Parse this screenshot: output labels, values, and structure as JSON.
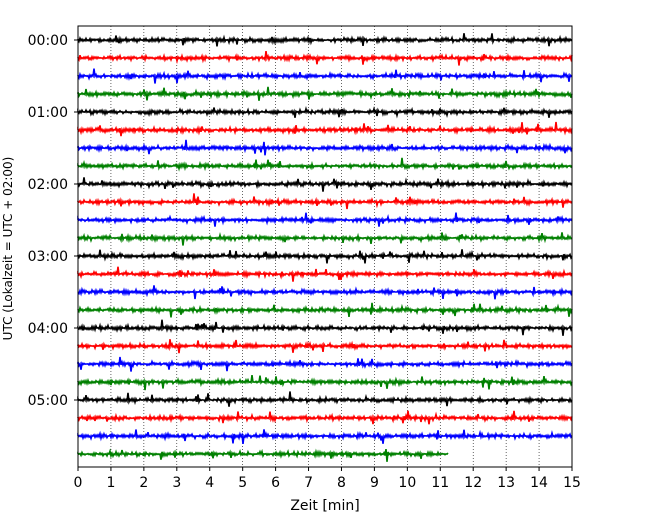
{
  "chart_data": {
    "type": "line",
    "title": "",
    "xlabel": "Zeit  [min]",
    "ylabel": "UTC (Lokalzeit = UTC + 02:00)",
    "xlim": [
      0,
      15
    ],
    "x_ticks": [
      "0",
      "1",
      "2",
      "3",
      "4",
      "5",
      "6",
      "7",
      "8",
      "9",
      "10",
      "11",
      "12",
      "13",
      "14",
      "15"
    ],
    "y_ticks": [
      "00:00",
      "01:00",
      "02:00",
      "03:00",
      "04:00",
      "05:00"
    ],
    "grid": "vertical dotted",
    "trace_interval_minutes": 15,
    "trace_colors": [
      "#000000",
      "#ff0000",
      "#0000ff",
      "#008000"
    ],
    "series": [
      {
        "start": "00:00",
        "color": "#000000",
        "end_min": 15
      },
      {
        "start": "00:15",
        "color": "#ff0000",
        "end_min": 15
      },
      {
        "start": "00:30",
        "color": "#0000ff",
        "end_min": 15
      },
      {
        "start": "00:45",
        "color": "#008000",
        "end_min": 15
      },
      {
        "start": "01:00",
        "color": "#000000",
        "end_min": 15
      },
      {
        "start": "01:15",
        "color": "#ff0000",
        "end_min": 15
      },
      {
        "start": "01:30",
        "color": "#0000ff",
        "end_min": 15
      },
      {
        "start": "01:45",
        "color": "#008000",
        "end_min": 15
      },
      {
        "start": "02:00",
        "color": "#000000",
        "end_min": 15
      },
      {
        "start": "02:15",
        "color": "#ff0000",
        "end_min": 15
      },
      {
        "start": "02:30",
        "color": "#0000ff",
        "end_min": 15
      },
      {
        "start": "02:45",
        "color": "#008000",
        "end_min": 15
      },
      {
        "start": "03:00",
        "color": "#000000",
        "end_min": 15
      },
      {
        "start": "03:15",
        "color": "#ff0000",
        "end_min": 15
      },
      {
        "start": "03:30",
        "color": "#0000ff",
        "end_min": 15
      },
      {
        "start": "03:45",
        "color": "#008000",
        "end_min": 15
      },
      {
        "start": "04:00",
        "color": "#000000",
        "end_min": 15
      },
      {
        "start": "04:15",
        "color": "#ff0000",
        "end_min": 15
      },
      {
        "start": "04:30",
        "color": "#0000ff",
        "end_min": 15
      },
      {
        "start": "04:45",
        "color": "#008000",
        "end_min": 15
      },
      {
        "start": "05:00",
        "color": "#000000",
        "end_min": 15
      },
      {
        "start": "05:15",
        "color": "#ff0000",
        "end_min": 15
      },
      {
        "start": "05:30",
        "color": "#0000ff",
        "end_min": 15
      },
      {
        "start": "05:45",
        "color": "#008000",
        "end_min": 11.25
      }
    ]
  }
}
